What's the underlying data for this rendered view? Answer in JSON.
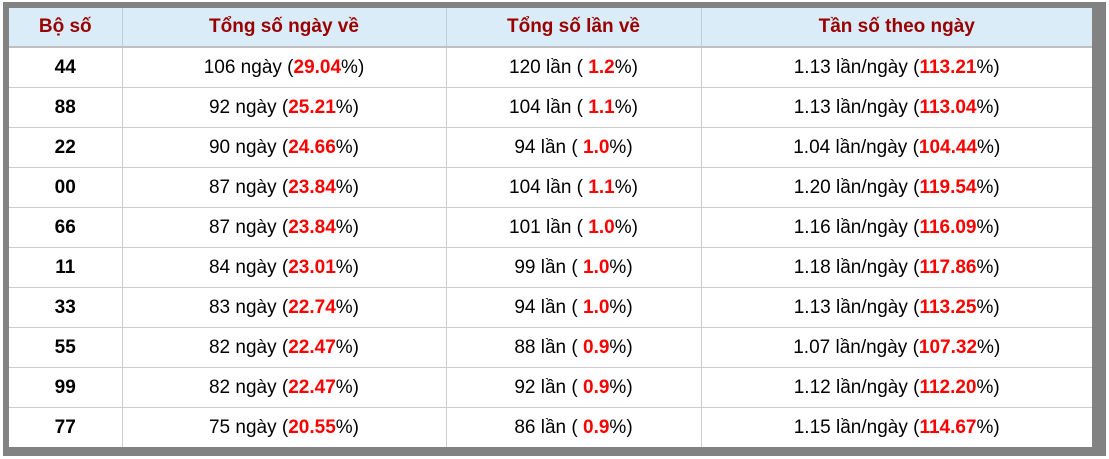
{
  "colors": {
    "frame_border": "#828282",
    "header_bg": "#d9ecf7",
    "header_text": "#990000",
    "header_divider": "#c0c0c0",
    "grid_line": "#cccccc",
    "body_text": "#000000",
    "accent_red": "#ff0000"
  },
  "table": {
    "headers": [
      "Bộ số",
      "Tổng số ngày về",
      "Tổng số lần về",
      "Tần số theo ngày"
    ],
    "rows": [
      {
        "pair": "44",
        "days_pre": "106 ngày (",
        "days_pct": "29.04",
        "days_post": "%)",
        "times_pre": "120 lần ( ",
        "times_pct": "1.2",
        "times_post": "%)",
        "freq_pre": "1.13 lần/ngày (",
        "freq_pct": "113.21",
        "freq_post": "%)"
      },
      {
        "pair": "88",
        "days_pre": "92 ngày (",
        "days_pct": "25.21",
        "days_post": "%)",
        "times_pre": "104 lần ( ",
        "times_pct": "1.1",
        "times_post": "%)",
        "freq_pre": "1.13 lần/ngày (",
        "freq_pct": "113.04",
        "freq_post": "%)"
      },
      {
        "pair": "22",
        "days_pre": "90 ngày (",
        "days_pct": "24.66",
        "days_post": "%)",
        "times_pre": "94 lần ( ",
        "times_pct": "1.0",
        "times_post": "%)",
        "freq_pre": "1.04 lần/ngày (",
        "freq_pct": "104.44",
        "freq_post": "%)"
      },
      {
        "pair": "00",
        "days_pre": "87 ngày (",
        "days_pct": "23.84",
        "days_post": "%)",
        "times_pre": "104 lần ( ",
        "times_pct": "1.1",
        "times_post": "%)",
        "freq_pre": "1.20 lần/ngày (",
        "freq_pct": "119.54",
        "freq_post": "%)"
      },
      {
        "pair": "66",
        "days_pre": "87 ngày (",
        "days_pct": "23.84",
        "days_post": "%)",
        "times_pre": "101 lần ( ",
        "times_pct": "1.0",
        "times_post": "%)",
        "freq_pre": "1.16 lần/ngày (",
        "freq_pct": "116.09",
        "freq_post": "%)"
      },
      {
        "pair": "11",
        "days_pre": "84 ngày (",
        "days_pct": "23.01",
        "days_post": "%)",
        "times_pre": "99 lần ( ",
        "times_pct": "1.0",
        "times_post": "%)",
        "freq_pre": "1.18 lần/ngày (",
        "freq_pct": "117.86",
        "freq_post": "%)"
      },
      {
        "pair": "33",
        "days_pre": "83 ngày (",
        "days_pct": "22.74",
        "days_post": "%)",
        "times_pre": "94 lần ( ",
        "times_pct": "1.0",
        "times_post": "%)",
        "freq_pre": "1.13 lần/ngày (",
        "freq_pct": "113.25",
        "freq_post": "%)"
      },
      {
        "pair": "55",
        "days_pre": "82 ngày (",
        "days_pct": "22.47",
        "days_post": "%)",
        "times_pre": "88 lần ( ",
        "times_pct": "0.9",
        "times_post": "%)",
        "freq_pre": "1.07 lần/ngày (",
        "freq_pct": "107.32",
        "freq_post": "%)"
      },
      {
        "pair": "99",
        "days_pre": "82 ngày (",
        "days_pct": "22.47",
        "days_post": "%)",
        "times_pre": "92 lần ( ",
        "times_pct": "0.9",
        "times_post": "%)",
        "freq_pre": "1.12 lần/ngày (",
        "freq_pct": "112.20",
        "freq_post": "%)"
      },
      {
        "pair": "77",
        "days_pre": "75 ngày (",
        "days_pct": "20.55",
        "days_post": "%)",
        "times_pre": "86 lần ( ",
        "times_pct": "0.9",
        "times_post": "%)",
        "freq_pre": "1.15 lần/ngày (",
        "freq_pct": "114.67",
        "freq_post": "%)"
      }
    ]
  }
}
